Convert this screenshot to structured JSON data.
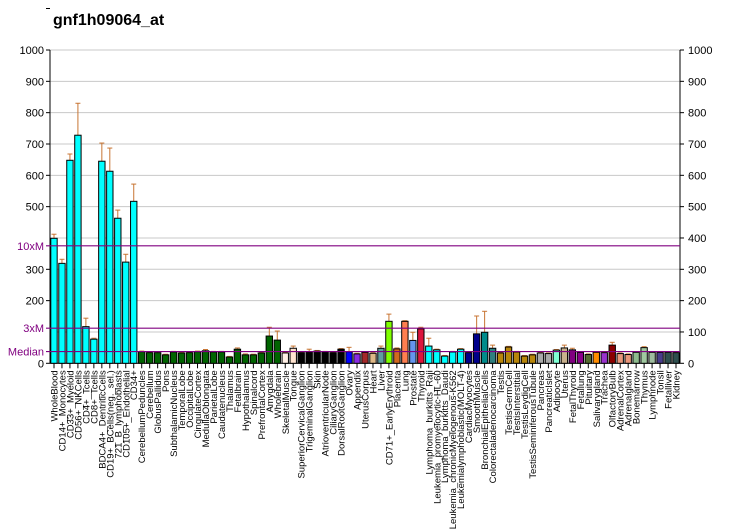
{
  "chart_data": {
    "type": "bar",
    "title": "gnf1h09064_at",
    "xlabel": "",
    "ylabel": "",
    "ylim": [
      0,
      1000
    ],
    "grid": true,
    "left_ticks": [
      "0",
      "200",
      "300",
      "500",
      "600",
      "700",
      "800",
      "900",
      "1000"
    ],
    "right_ticks": [
      "0",
      "100",
      "200",
      "300",
      "400",
      "500",
      "600",
      "700",
      "800",
      "900",
      "1000"
    ],
    "reference_lines": [
      {
        "label": "Median",
        "value": 37.5
      },
      {
        "label": "3xM",
        "value": 112
      },
      {
        "label": "10xM",
        "value": 375
      }
    ],
    "reference_color": "#800080",
    "categories": [
      "WholeBlood",
      "CD14+_Monocytes",
      "CD33+_Myeloid",
      "CD56+_NKCells",
      "CD4+_Tcells",
      "CD8+_Tcells",
      "BDCA4+_DentriticCells",
      "CD19+_BCells(neg._sel.)",
      "721_B_lymphoblasts",
      "CD105+_Endothelial",
      "CD34+",
      "CerebellumPeduncles",
      "Cerebellum",
      "GlobusPallidus",
      "Pons",
      "SubthalamicNucleus",
      "TemporalLobe",
      "OccipitalLobe",
      "CingulateCortex",
      "MedullaOblongata",
      "ParietalLobe",
      "Caudatenucleus",
      "Thalamus",
      "Fetalbrain",
      "Hypothalamus",
      "Spinalcord",
      "PrefrontalCortex",
      "Amygdala",
      "Wholebrain",
      "SkeletalMuscle",
      "Tongue",
      "SuperiorCervicalGanglion",
      "TrigeminalGanglion",
      "Skin",
      "AtrioventricularNode",
      "CiliaryGanglion",
      "DorsalRootGanglion",
      "Ovary",
      "Appendix",
      "UterusCorpus",
      "Heart",
      "Liver",
      "CD71+_EarlyErythroid",
      "Placenta",
      "Lung",
      "Prostate",
      "Thyroid",
      "Lymphoma_burkitts_Raji",
      "Leukemia_promyelocytic-HL-60",
      "Lymphoma_burkitts_Daudi",
      "Leukemia_chronicMyelogenous-K562",
      "Leukemialymphoblastic(MOLT-4)",
      "CardiacMyocytes",
      "SmoothMuscle",
      "BronchialEpithelialCells",
      "Colorectaladenocarcinoma",
      "Testis",
      "TestisGermCell",
      "TestisInterstitial",
      "TestisLeydigCell",
      "TestisSeminiferousTubule",
      "Pancreas",
      "PancreaticIslet",
      "Adipocyte",
      "Uterus",
      "FetalThyroid",
      "Fetallung",
      "Pituitary",
      "Salivarygland",
      "Trachea",
      "OlfactoryBulb",
      "AdrenalCortex",
      "Adrenalgland",
      "Bonemarrow",
      "Thymus",
      "Lymphnode",
      "Tonsil",
      "Fetalliver",
      "Kidney"
    ],
    "values": [
      399,
      319,
      648,
      728,
      117,
      77,
      645,
      613,
      463,
      323,
      517,
      37,
      34,
      34,
      27,
      36,
      33,
      34,
      37,
      40,
      36,
      36,
      20,
      45,
      27,
      27,
      33,
      87,
      74,
      33,
      48,
      34,
      37,
      39,
      36,
      34,
      45,
      37,
      30,
      35,
      32,
      48,
      134,
      46,
      134,
      73,
      110,
      55,
      43,
      23,
      36,
      45,
      34,
      94,
      99,
      48,
      33,
      52,
      36,
      23,
      27,
      33,
      31,
      42,
      49,
      43,
      35,
      28,
      35,
      34,
      58,
      31,
      28,
      35,
      50,
      35,
      35,
      35,
      34
    ],
    "error_upper": [
      412,
      332,
      668,
      830,
      144,
      80,
      703,
      687,
      489,
      348,
      572,
      39,
      36,
      37,
      29,
      38,
      35,
      36,
      39,
      44,
      38,
      38,
      22,
      49,
      30,
      29,
      35,
      115,
      103,
      35,
      55,
      36,
      45,
      41,
      38,
      36,
      47,
      51,
      32,
      37,
      34,
      55,
      157,
      49,
      136,
      99,
      115,
      80,
      45,
      25,
      38,
      47,
      36,
      151,
      166,
      58,
      35,
      54,
      38,
      25,
      29,
      35,
      33,
      44,
      58,
      48,
      37,
      30,
      37,
      36,
      67,
      33,
      30,
      37,
      53,
      37,
      37,
      37,
      36
    ],
    "colors": [
      "#00ffff",
      "#00ffff",
      "#00ffff",
      "#00ffff",
      "#00ffff",
      "#00ffff",
      "#00ffff",
      "#00ffff",
      "#00ffff",
      "#00ffff",
      "#00ffff",
      "#006400",
      "#006400",
      "#006400",
      "#006400",
      "#006400",
      "#006400",
      "#006400",
      "#006400",
      "#006400",
      "#006400",
      "#006400",
      "#006400",
      "#006400",
      "#006400",
      "#006400",
      "#006400",
      "#006400",
      "#006400",
      "#fff0e6",
      "#ffe4d0",
      "#000000",
      "#000000",
      "#000000",
      "#000000",
      "#000000",
      "#000000",
      "#0000ff",
      "#8a2be2",
      "#a52a2a",
      "#deb887",
      "#5f9ea0",
      "#7fff00",
      "#d2691e",
      "#ff7f50",
      "#6495ed",
      "#dc143c",
      "#00ffff",
      "#00ffff",
      "#00ffff",
      "#00ffff",
      "#00ffff",
      "#00008b",
      "#00008b",
      "#008b8b",
      "#2f7f7f",
      "#b8860b",
      "#b8860b",
      "#b8860b",
      "#b8860b",
      "#b8860b",
      "#a9a9a9",
      "#a9a9a9",
      "#7fffd4",
      "#c8b08c",
      "#800080",
      "#8b008b",
      "#556b2f",
      "#ff8c00",
      "#9932cc",
      "#8b0000",
      "#e9967a",
      "#e9967a",
      "#8fbc8f",
      "#a0c8a0",
      "#9fbc9f",
      "#483d8b",
      "#2f4f4f",
      "#2f4f4f"
    ],
    "error_color": "#c87533"
  }
}
